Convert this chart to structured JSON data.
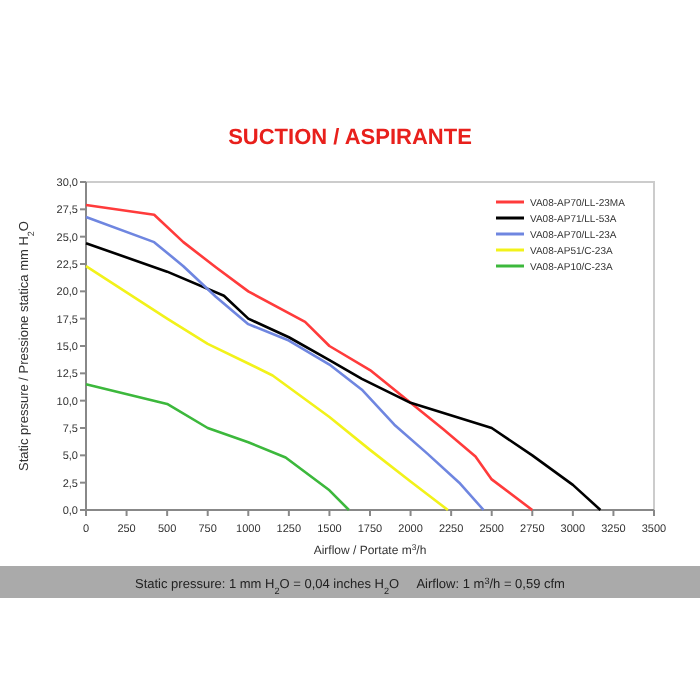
{
  "chart_data": {
    "type": "line",
    "title": "SUCTION / ASPIRANTE",
    "xlabel": "Airflow / Portate m$^{3}$/h",
    "ylabel": "Static pressure / Pressione statica  mm H$_{2}$O",
    "annotations": [
      "Static pressure: 1 mm H$_{2}$O = 0,04 inches H$_{2}$O     Airflow: 1 m$^{3}$/h = 0,59 cfm"
    ],
    "xlim": [
      0,
      3500
    ],
    "xticks": [
      0,
      250,
      500,
      750,
      1000,
      1250,
      1500,
      1750,
      2000,
      2250,
      2500,
      2750,
      3000,
      3250,
      3500
    ],
    "ylim": [
      0,
      30
    ],
    "yticks": [
      {
        "value": 0,
        "label": "0,0"
      },
      {
        "value": 2.5,
        "label": "2,5"
      },
      {
        "value": 5,
        "label": "5,0"
      },
      {
        "value": 7.5,
        "label": "7,5"
      },
      {
        "value": 10,
        "label": "10,0"
      },
      {
        "value": 12.5,
        "label": "12,5"
      },
      {
        "value": 15,
        "label": "15,0"
      },
      {
        "value": 17.5,
        "label": "17,5"
      },
      {
        "value": 20,
        "label": "20,0"
      },
      {
        "value": 22.5,
        "label": "22,5"
      },
      {
        "value": 25,
        "label": "25,0"
      },
      {
        "value": 27.5,
        "label": "27,5"
      },
      {
        "value": 30,
        "label": "30,0"
      }
    ],
    "legend": "top right",
    "marker": "none",
    "line_style": "solid",
    "series": [
      {
        "name": "VA08-AP70/LL-23MA",
        "color": "#ff3b3b",
        "x": [
          0,
          420,
          600,
          800,
          1000,
          1350,
          1500,
          1750,
          2000,
          2200,
          2400,
          2500,
          2750
        ],
        "values": [
          27.9,
          27.0,
          24.5,
          22.2,
          20.0,
          17.2,
          15.0,
          12.8,
          9.8,
          7.4,
          4.9,
          2.8,
          0
        ]
      },
      {
        "name": "VA08-AP71/LL-53A",
        "color": "#000000",
        "x": [
          0,
          500,
          850,
          1000,
          1250,
          1500,
          1700,
          2000,
          2500,
          2750,
          3000,
          3170
        ],
        "values": [
          24.4,
          21.8,
          19.6,
          17.5,
          15.8,
          13.7,
          12.0,
          9.8,
          7.5,
          5.0,
          2.3,
          0
        ]
      },
      {
        "name": "VA08-AP70/LL-23A",
        "color": "#6f86e0",
        "x": [
          0,
          420,
          600,
          800,
          1000,
          1250,
          1500,
          1700,
          1900,
          2100,
          2300,
          2450
        ],
        "values": [
          26.8,
          24.5,
          22.3,
          19.5,
          17.0,
          15.5,
          13.3,
          11.0,
          7.8,
          5.2,
          2.5,
          0
        ]
      },
      {
        "name": "VA08-AP51/C-23A",
        "color": "#f2f21a",
        "x": [
          0,
          500,
          750,
          1000,
          1150,
          1500,
          1750,
          2000,
          2230
        ],
        "values": [
          22.3,
          17.5,
          15.2,
          13.4,
          12.3,
          8.5,
          5.5,
          2.6,
          0
        ]
      },
      {
        "name": "VA08-AP10/C-23A",
        "color": "#3cb83c",
        "x": [
          0,
          500,
          750,
          1000,
          1230,
          1500,
          1620
        ],
        "values": [
          11.5,
          9.7,
          7.5,
          6.2,
          4.8,
          1.8,
          0
        ]
      }
    ]
  }
}
